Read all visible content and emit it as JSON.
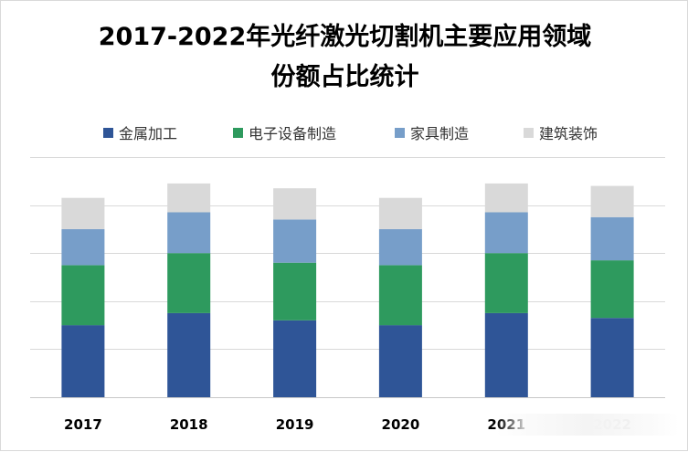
{
  "chart_data": {
    "type": "bar",
    "stacked": true,
    "title": "2017-2022年光纤激光切割机主要应用领域份额占比统计",
    "title_lines": [
      "2017-2022年光纤激光切割机主要应用领域",
      "份额占比统计"
    ],
    "categories": [
      "2017",
      "2018",
      "2019",
      "2020",
      "2021",
      "2022"
    ],
    "series": [
      {
        "name": "金属加工",
        "color": "#2f5597",
        "values": [
          30,
          35,
          32,
          30,
          35,
          33
        ]
      },
      {
        "name": "电子设备制造",
        "color": "#2e9a5e",
        "values": [
          25,
          25,
          24,
          25,
          25,
          24
        ]
      },
      {
        "name": "家具制造",
        "color": "#779ec9",
        "values": [
          15,
          17,
          18,
          15,
          17,
          18
        ]
      },
      {
        "name": "建筑装饰",
        "color": "#d9d9d9",
        "values": [
          13,
          12,
          13,
          13,
          12,
          13
        ]
      }
    ],
    "ylim": [
      0,
      100
    ],
    "y_gridlines": [
      0,
      20,
      40,
      60,
      80,
      100
    ],
    "y_tick_labels_visible": false,
    "legend_position": "top",
    "grid": true
  }
}
